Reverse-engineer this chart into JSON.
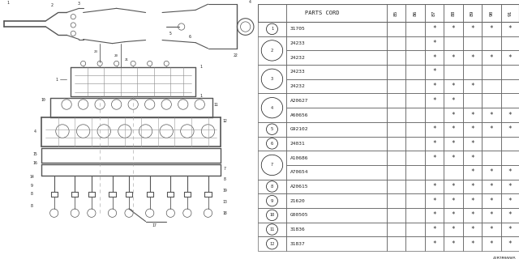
{
  "catalog_num": "A1B2B00065",
  "table_header_main": "PARTS CORD",
  "year_cols": [
    "85",
    "86",
    "87",
    "88",
    "89",
    "90",
    "91"
  ],
  "rows": [
    {
      "num": "1",
      "parts": [
        "31705"
      ],
      "marks": [
        [
          0,
          0,
          1,
          1,
          1,
          1,
          1
        ]
      ]
    },
    {
      "num": "2",
      "parts": [
        "24233",
        "24232"
      ],
      "marks": [
        [
          0,
          0,
          1,
          0,
          0,
          0,
          0
        ],
        [
          0,
          0,
          1,
          1,
          1,
          1,
          1
        ]
      ]
    },
    {
      "num": "3",
      "parts": [
        "24233",
        "24232"
      ],
      "marks": [
        [
          0,
          0,
          1,
          0,
          0,
          0,
          0
        ],
        [
          0,
          0,
          1,
          1,
          1,
          0,
          0
        ]
      ]
    },
    {
      "num": "4",
      "parts": [
        "A20627",
        "A60656"
      ],
      "marks": [
        [
          0,
          0,
          1,
          1,
          0,
          0,
          0
        ],
        [
          0,
          0,
          0,
          1,
          1,
          1,
          1
        ]
      ]
    },
    {
      "num": "5",
      "parts": [
        "G92102"
      ],
      "marks": [
        [
          0,
          0,
          1,
          1,
          1,
          1,
          1
        ]
      ]
    },
    {
      "num": "6",
      "parts": [
        "24031"
      ],
      "marks": [
        [
          0,
          0,
          1,
          1,
          1,
          0,
          0
        ]
      ]
    },
    {
      "num": "7",
      "parts": [
        "A10686",
        "A70654"
      ],
      "marks": [
        [
          0,
          0,
          1,
          1,
          1,
          0,
          0
        ],
        [
          0,
          0,
          0,
          0,
          1,
          1,
          1
        ]
      ]
    },
    {
      "num": "8",
      "parts": [
        "A20615"
      ],
      "marks": [
        [
          0,
          0,
          1,
          1,
          1,
          1,
          1
        ]
      ]
    },
    {
      "num": "9",
      "parts": [
        "21620"
      ],
      "marks": [
        [
          0,
          0,
          1,
          1,
          1,
          1,
          1
        ]
      ]
    },
    {
      "num": "10",
      "parts": [
        "G00505"
      ],
      "marks": [
        [
          0,
          0,
          1,
          1,
          1,
          1,
          1
        ]
      ]
    },
    {
      "num": "11",
      "parts": [
        "31836"
      ],
      "marks": [
        [
          0,
          0,
          1,
          1,
          1,
          1,
          1
        ]
      ]
    },
    {
      "num": "12",
      "parts": [
        "31837"
      ],
      "marks": [
        [
          0,
          0,
          1,
          1,
          1,
          1,
          1
        ]
      ]
    }
  ],
  "bg_color": "#ffffff",
  "line_color": "#666666",
  "text_color": "#222222",
  "diag_color": "#555555"
}
